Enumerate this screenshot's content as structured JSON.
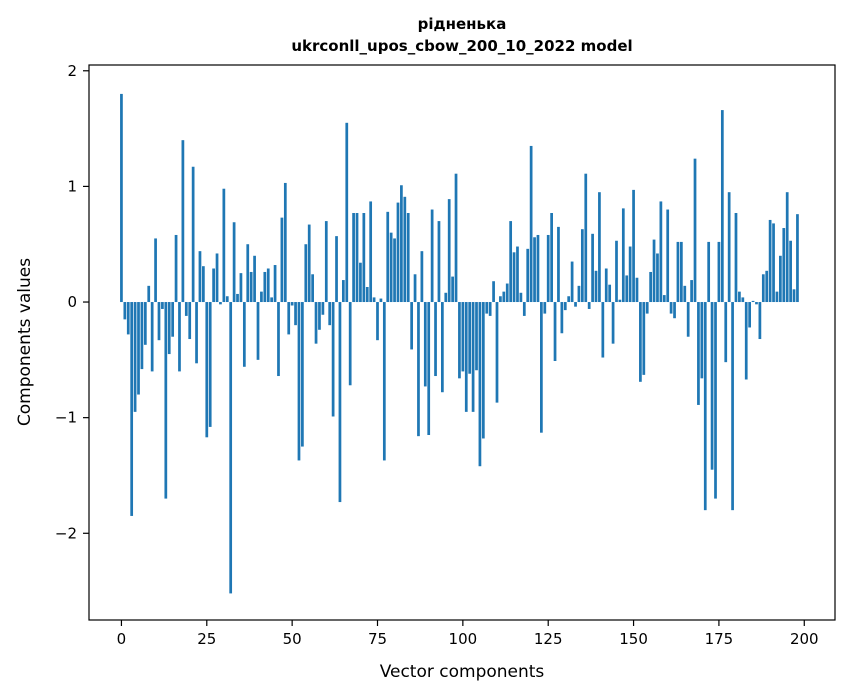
{
  "chart_data": {
    "type": "bar",
    "title": "рідненька",
    "subtitle": "ukrconll_upos_cbow_200_10_2022 model",
    "xlabel": "Vector components",
    "ylabel": "Components values",
    "xlim": [
      -9.5,
      209
    ],
    "ylim": [
      -2.75,
      2.05
    ],
    "xticks": [
      0,
      25,
      50,
      75,
      100,
      125,
      150,
      175,
      200
    ],
    "xtick_labels": [
      "0",
      "25",
      "50",
      "75",
      "100",
      "125",
      "150",
      "175",
      "200"
    ],
    "yticks": [
      2,
      1,
      0,
      -1,
      -2
    ],
    "ytick_labels": [
      "2",
      "1",
      "0",
      "−1",
      "−2"
    ],
    "grid": false,
    "bar_color": "#1f77b4",
    "values": [
      1.8,
      -0.15,
      -0.28,
      -1.85,
      -0.95,
      -0.8,
      -0.58,
      -0.37,
      0.14,
      -0.6,
      0.55,
      -0.33,
      -0.06,
      -1.7,
      -0.45,
      -0.3,
      0.58,
      -0.6,
      1.4,
      -0.12,
      -0.32,
      1.17,
      -0.53,
      0.44,
      0.31,
      -1.17,
      -1.08,
      0.29,
      0.42,
      -0.02,
      0.98,
      0.05,
      -2.52,
      0.69,
      0.07,
      0.25,
      -0.56,
      0.5,
      0.26,
      0.4,
      -0.5,
      0.09,
      0.26,
      0.29,
      0.04,
      0.32,
      -0.64,
      0.73,
      1.03,
      -0.28,
      -0.03,
      -0.2,
      -1.37,
      -1.25,
      0.5,
      0.67,
      0.24,
      -0.36,
      -0.24,
      -0.11,
      0.7,
      -0.2,
      -0.99,
      0.57,
      -1.73,
      0.19,
      1.55,
      -0.72,
      0.77,
      0.77,
      0.34,
      0.77,
      0.13,
      0.87,
      0.04,
      -0.33,
      0.03,
      -1.37,
      0.78,
      0.6,
      0.55,
      0.86,
      1.01,
      0.91,
      0.77,
      -0.41,
      0.24,
      -1.16,
      0.44,
      -0.73,
      -1.15,
      0.8,
      -0.64,
      0.7,
      -0.78,
      0.08,
      0.89,
      0.22,
      1.11,
      -0.66,
      -0.6,
      -0.95,
      -0.62,
      -0.95,
      -0.59,
      -1.42,
      -1.18,
      -0.1,
      -0.12,
      0.18,
      -0.87,
      0.05,
      0.09,
      0.16,
      0.7,
      0.43,
      0.48,
      0.08,
      -0.12,
      0.46,
      1.35,
      0.56,
      0.58,
      -1.13,
      -0.1,
      0.58,
      0.77,
      -0.51,
      0.65,
      -0.27,
      -0.07,
      0.05,
      0.35,
      -0.04,
      0.14,
      0.63,
      1.11,
      -0.06,
      0.59,
      0.27,
      0.95,
      -0.48,
      0.29,
      0.15,
      -0.36,
      0.53,
      0.02,
      0.81,
      0.23,
      0.48,
      0.97,
      0.21,
      -0.69,
      -0.63,
      -0.1,
      0.26,
      0.54,
      0.42,
      0.87,
      0.06,
      0.8,
      -0.1,
      -0.14,
      0.52,
      0.52,
      0.14,
      -0.3,
      0.19,
      1.24,
      -0.89,
      -0.66,
      -1.8,
      0.52,
      -1.45,
      -1.7,
      0.52,
      1.66,
      -0.52,
      0.95,
      -1.8,
      0.77,
      0.09,
      0.04,
      -0.67,
      -0.22,
      0.01,
      -0.02,
      -0.32,
      0.24,
      0.27,
      0.71,
      0.68,
      0.09,
      0.4,
      0.64,
      0.95,
      0.53,
      0.11,
      0.76
    ]
  }
}
